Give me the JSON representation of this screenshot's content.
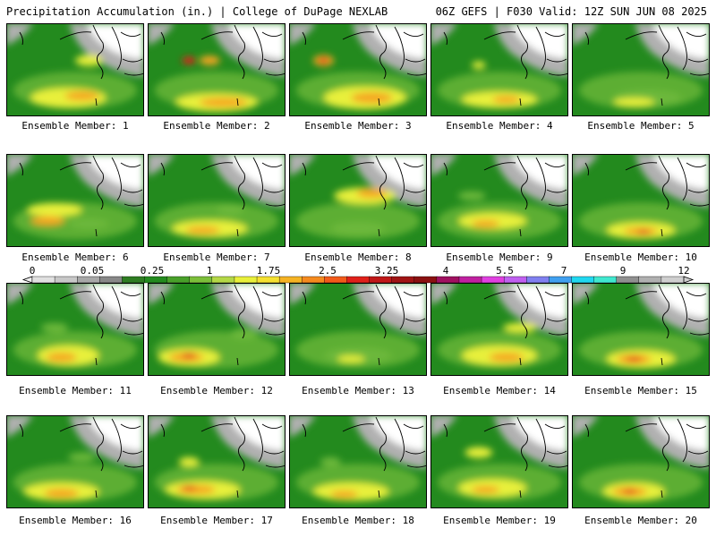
{
  "header": {
    "left": "Precipitation Accumulation (in.) | College of DuPage NEXLAB",
    "right": "06Z GEFS | F030 Valid: 12Z SUN JUN 08 2025"
  },
  "colors": {
    "low": "#238a1e",
    "light": "#6cb83a",
    "yellow": "#e8f03a",
    "orange": "#f5a623",
    "red": "#e0201a",
    "dryGray": "#b0b0b0",
    "dryWhite": "#ffffff"
  },
  "members": [
    {
      "label": "Ensemble Member: 1",
      "blobs": [
        [
          0.45,
          0.8,
          0.55,
          0.22,
          "yellow"
        ],
        [
          0.55,
          0.78,
          0.25,
          0.1,
          "orange"
        ],
        [
          0.6,
          0.4,
          0.2,
          0.12,
          "yellow"
        ]
      ]
    },
    {
      "label": "Ensemble Member: 2",
      "blobs": [
        [
          0.5,
          0.85,
          0.6,
          0.2,
          "yellow"
        ],
        [
          0.55,
          0.85,
          0.35,
          0.1,
          "orange"
        ],
        [
          0.45,
          0.4,
          0.15,
          0.1,
          "orange"
        ],
        [
          0.3,
          0.4,
          0.1,
          0.08,
          "red"
        ]
      ]
    },
    {
      "label": "Ensemble Member: 3",
      "blobs": [
        [
          0.55,
          0.8,
          0.6,
          0.25,
          "yellow"
        ],
        [
          0.6,
          0.8,
          0.3,
          0.12,
          "orange"
        ],
        [
          0.25,
          0.4,
          0.15,
          0.12,
          "orange"
        ],
        [
          0.25,
          0.4,
          0.07,
          0.06,
          "red"
        ]
      ]
    },
    {
      "label": "Ensemble Member: 4",
      "blobs": [
        [
          0.5,
          0.82,
          0.55,
          0.18,
          "yellow"
        ],
        [
          0.55,
          0.82,
          0.2,
          0.08,
          "orange"
        ],
        [
          0.35,
          0.45,
          0.1,
          0.08,
          "yellow"
        ]
      ]
    },
    {
      "label": "Ensemble Member: 5",
      "blobs": [
        [
          0.55,
          0.8,
          0.5,
          0.18,
          "light"
        ],
        [
          0.45,
          0.85,
          0.3,
          0.1,
          "yellow"
        ]
      ]
    },
    {
      "label": "Ensemble Member: 6",
      "blobs": [
        [
          0.35,
          0.6,
          0.4,
          0.15,
          "yellow"
        ],
        [
          0.3,
          0.72,
          0.25,
          0.1,
          "orange"
        ],
        [
          0.6,
          0.75,
          0.3,
          0.12,
          "light"
        ]
      ]
    },
    {
      "label": "Ensemble Member: 7",
      "blobs": [
        [
          0.45,
          0.8,
          0.55,
          0.18,
          "yellow"
        ],
        [
          0.4,
          0.82,
          0.25,
          0.08,
          "orange"
        ],
        [
          0.6,
          0.6,
          0.2,
          0.12,
          "light"
        ]
      ]
    },
    {
      "label": "Ensemble Member: 8",
      "blobs": [
        [
          0.55,
          0.45,
          0.45,
          0.18,
          "yellow"
        ],
        [
          0.6,
          0.42,
          0.22,
          0.1,
          "orange"
        ],
        [
          0.5,
          0.8,
          0.4,
          0.15,
          "light"
        ]
      ]
    },
    {
      "label": "Ensemble Member: 9",
      "blobs": [
        [
          0.45,
          0.72,
          0.5,
          0.18,
          "yellow"
        ],
        [
          0.4,
          0.75,
          0.2,
          0.08,
          "orange"
        ],
        [
          0.3,
          0.45,
          0.2,
          0.1,
          "light"
        ]
      ]
    },
    {
      "label": "Ensemble Member: 10",
      "blobs": [
        [
          0.5,
          0.82,
          0.5,
          0.18,
          "yellow"
        ],
        [
          0.5,
          0.83,
          0.25,
          0.08,
          "orange"
        ],
        [
          0.52,
          0.84,
          0.1,
          0.05,
          "red"
        ]
      ]
    },
    {
      "label": "Ensemble Member: 11",
      "blobs": [
        [
          0.45,
          0.78,
          0.45,
          0.22,
          "yellow"
        ],
        [
          0.4,
          0.8,
          0.22,
          0.1,
          "orange"
        ],
        [
          0.35,
          0.48,
          0.2,
          0.1,
          "light"
        ]
      ]
    },
    {
      "label": "Ensemble Member: 12",
      "blobs": [
        [
          0.3,
          0.8,
          0.45,
          0.2,
          "yellow"
        ],
        [
          0.28,
          0.8,
          0.25,
          0.1,
          "orange"
        ],
        [
          0.3,
          0.78,
          0.1,
          0.06,
          "red"
        ],
        [
          0.7,
          0.55,
          0.2,
          0.12,
          "light"
        ]
      ]
    },
    {
      "label": "Ensemble Member: 13",
      "blobs": [
        [
          0.5,
          0.78,
          0.5,
          0.18,
          "light"
        ],
        [
          0.45,
          0.82,
          0.2,
          0.08,
          "yellow"
        ]
      ]
    },
    {
      "label": "Ensemble Member: 14",
      "blobs": [
        [
          0.5,
          0.78,
          0.55,
          0.22,
          "yellow"
        ],
        [
          0.55,
          0.8,
          0.25,
          0.1,
          "orange"
        ],
        [
          0.65,
          0.48,
          0.25,
          0.1,
          "yellow"
        ]
      ]
    },
    {
      "label": "Ensemble Member: 15",
      "blobs": [
        [
          0.5,
          0.82,
          0.5,
          0.2,
          "yellow"
        ],
        [
          0.45,
          0.82,
          0.25,
          0.1,
          "orange"
        ],
        [
          0.45,
          0.82,
          0.12,
          0.05,
          "red"
        ]
      ]
    },
    {
      "label": "Ensemble Member: 16",
      "blobs": [
        [
          0.4,
          0.82,
          0.55,
          0.2,
          "yellow"
        ],
        [
          0.4,
          0.84,
          0.25,
          0.1,
          "orange"
        ],
        [
          0.55,
          0.45,
          0.2,
          0.1,
          "light"
        ]
      ]
    },
    {
      "label": "Ensemble Member: 17",
      "blobs": [
        [
          0.4,
          0.8,
          0.55,
          0.2,
          "yellow"
        ],
        [
          0.35,
          0.8,
          0.28,
          0.1,
          "orange"
        ],
        [
          0.3,
          0.78,
          0.1,
          0.05,
          "red"
        ],
        [
          0.3,
          0.5,
          0.15,
          0.1,
          "yellow"
        ]
      ]
    },
    {
      "label": "Ensemble Member: 18",
      "blobs": [
        [
          0.45,
          0.82,
          0.55,
          0.2,
          "yellow"
        ],
        [
          0.4,
          0.85,
          0.2,
          0.08,
          "orange"
        ],
        [
          0.3,
          0.5,
          0.15,
          0.1,
          "light"
        ]
      ]
    },
    {
      "label": "Ensemble Member: 19",
      "blobs": [
        [
          0.45,
          0.78,
          0.5,
          0.2,
          "yellow"
        ],
        [
          0.4,
          0.8,
          0.2,
          0.08,
          "orange"
        ],
        [
          0.35,
          0.4,
          0.2,
          0.12,
          "yellow"
        ]
      ]
    },
    {
      "label": "Ensemble Member: 20",
      "blobs": [
        [
          0.45,
          0.82,
          0.45,
          0.2,
          "yellow"
        ],
        [
          0.42,
          0.82,
          0.25,
          0.1,
          "orange"
        ],
        [
          0.42,
          0.82,
          0.1,
          0.05,
          "red"
        ]
      ]
    }
  ],
  "colorbar": {
    "labels": [
      "0",
      "0.05",
      "0.25",
      "1",
      "1.75",
      "2.5",
      "3.25",
      "4",
      "5.5",
      "7",
      "9",
      "12"
    ],
    "colors": [
      "#e0e0e0",
      "#c8c8c8",
      "#a8a8a8",
      "#888888",
      "#2e7d22",
      "#238a1e",
      "#48a02a",
      "#7cbf3a",
      "#b4d846",
      "#e8f03a",
      "#f5e130",
      "#f5b323",
      "#f58a1e",
      "#f25a1a",
      "#e0201a",
      "#c01818",
      "#a01414",
      "#8a1010",
      "#a01060",
      "#c020a0",
      "#e040e0",
      "#c060f0",
      "#8080f0",
      "#40a0f0",
      "#20d8f0",
      "#40e8d0",
      "#909090",
      "#b0b0b0",
      "#cfcfcf"
    ]
  }
}
